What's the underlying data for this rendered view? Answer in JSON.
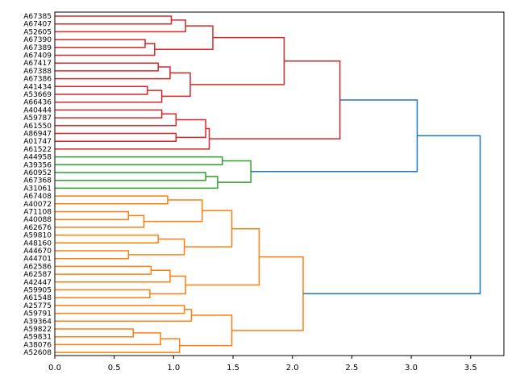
{
  "chart_data": {
    "type": "dendrogram",
    "orientation": "horizontal",
    "title": "",
    "xlabel": "",
    "ylabel": "",
    "xlim": [
      0,
      3.78
    ],
    "xticks": [
      0.0,
      0.5,
      1.0,
      1.5,
      2.0,
      2.5,
      3.0,
      3.5
    ],
    "xtick_labels": [
      "0.0",
      "0.5",
      "1.0",
      "1.5",
      "2.0",
      "2.5",
      "3.0",
      "3.5"
    ],
    "colors": {
      "red": "#d62728",
      "green": "#2ca02c",
      "orange": "#ff7f0e",
      "blue": "#1f77b4",
      "axis": "#000000"
    },
    "leaves": [
      "A67385",
      "A67407",
      "A52605",
      "A67390",
      "A67389",
      "A67409",
      "A67417",
      "A67388",
      "A67386",
      "A41434",
      "A53669",
      "A66436",
      "A40444",
      "A59787",
      "A61550",
      "A86947",
      "A01747",
      "A61522",
      "A44958",
      "A39356",
      "A60952",
      "A67368",
      "A31061",
      "A67408",
      "A40072",
      "A71108",
      "A40088",
      "A62676",
      "A59810",
      "A48160",
      "A44670",
      "A44701",
      "A62586",
      "A62587",
      "A42447",
      "A59905",
      "A61548",
      "A25775",
      "A59791",
      "A39364",
      "A59822",
      "A59831",
      "A38076",
      "A52608"
    ],
    "merges": [
      {
        "a": "A67385",
        "b": "A67407",
        "height": 0.98,
        "color": "red"
      },
      {
        "a": "A67390",
        "b": "A67389",
        "height": 0.76,
        "color": "red"
      },
      {
        "a": "n2",
        "b": "A67409",
        "height": 0.84,
        "color": "red"
      },
      {
        "a": "n1",
        "b": "A52605",
        "height": 1.1,
        "color": "red"
      },
      {
        "a": "n4",
        "b": "n3",
        "height": 1.33,
        "color": "red"
      },
      {
        "a": "A67417",
        "b": "A67388",
        "height": 0.87,
        "color": "red"
      },
      {
        "a": "n6",
        "b": "A67386",
        "height": 0.97,
        "color": "red"
      },
      {
        "a": "A41434",
        "b": "A53669",
        "height": 0.78,
        "color": "red"
      },
      {
        "a": "n8",
        "b": "A66436",
        "height": 0.9,
        "color": "red"
      },
      {
        "a": "n7",
        "b": "n9",
        "height": 1.14,
        "color": "red"
      },
      {
        "a": "n5",
        "b": "n10",
        "height": 1.93,
        "color": "red"
      },
      {
        "a": "A40444",
        "b": "A59787",
        "height": 0.9,
        "color": "red"
      },
      {
        "a": "n12",
        "b": "A61550",
        "height": 1.02,
        "color": "red"
      },
      {
        "a": "A86947",
        "b": "A01747",
        "height": 1.02,
        "color": "red"
      },
      {
        "a": "n13",
        "b": "n14",
        "height": 1.27,
        "color": "red"
      },
      {
        "a": "n15",
        "b": "A61522",
        "height": 1.3,
        "color": "red"
      },
      {
        "a": "n11",
        "b": "n16",
        "height": 2.4,
        "color": "red"
      },
      {
        "a": "A44958",
        "b": "A39356",
        "height": 1.41,
        "color": "green"
      },
      {
        "a": "A60952",
        "b": "A67368",
        "height": 1.27,
        "color": "green"
      },
      {
        "a": "n19",
        "b": "A31061",
        "height": 1.37,
        "color": "green"
      },
      {
        "a": "n18",
        "b": "n20",
        "height": 1.65,
        "color": "green"
      },
      {
        "a": "n17",
        "b": "n21",
        "height": 3.05,
        "color": "blue"
      },
      {
        "a": "A67408",
        "b": "A40072",
        "height": 0.95,
        "color": "orange"
      },
      {
        "a": "A71108",
        "b": "A40088",
        "height": 0.62,
        "color": "orange"
      },
      {
        "a": "n24",
        "b": "A62676",
        "height": 0.75,
        "color": "orange"
      },
      {
        "a": "n23",
        "b": "n25",
        "height": 1.24,
        "color": "orange"
      },
      {
        "a": "A59810",
        "b": "A48160",
        "height": 0.87,
        "color": "orange"
      },
      {
        "a": "A44670",
        "b": "A44701",
        "height": 0.62,
        "color": "orange"
      },
      {
        "a": "n27",
        "b": "n28",
        "height": 1.09,
        "color": "orange"
      },
      {
        "a": "n26",
        "b": "n29",
        "height": 1.49,
        "color": "orange"
      },
      {
        "a": "A62586",
        "b": "A62587",
        "height": 0.81,
        "color": "orange"
      },
      {
        "a": "n31",
        "b": "A42447",
        "height": 0.97,
        "color": "orange"
      },
      {
        "a": "A59905",
        "b": "A61548",
        "height": 0.8,
        "color": "orange"
      },
      {
        "a": "n32",
        "b": "n33",
        "height": 1.1,
        "color": "orange"
      },
      {
        "a": "n30",
        "b": "n34",
        "height": 1.72,
        "color": "orange"
      },
      {
        "a": "A25775",
        "b": "A59791",
        "height": 1.09,
        "color": "orange"
      },
      {
        "a": "n36",
        "b": "A39364",
        "height": 1.15,
        "color": "orange"
      },
      {
        "a": "A59822",
        "b": "A59831",
        "height": 0.66,
        "color": "orange"
      },
      {
        "a": "n38",
        "b": "A38076",
        "height": 0.89,
        "color": "orange"
      },
      {
        "a": "n39",
        "b": "A52608",
        "height": 1.05,
        "color": "orange"
      },
      {
        "a": "n37",
        "b": "n40",
        "height": 1.49,
        "color": "orange"
      },
      {
        "a": "n35",
        "b": "n41",
        "height": 2.09,
        "color": "orange"
      },
      {
        "a": "n22",
        "b": "n42",
        "height": 3.58,
        "color": "blue"
      }
    ]
  }
}
